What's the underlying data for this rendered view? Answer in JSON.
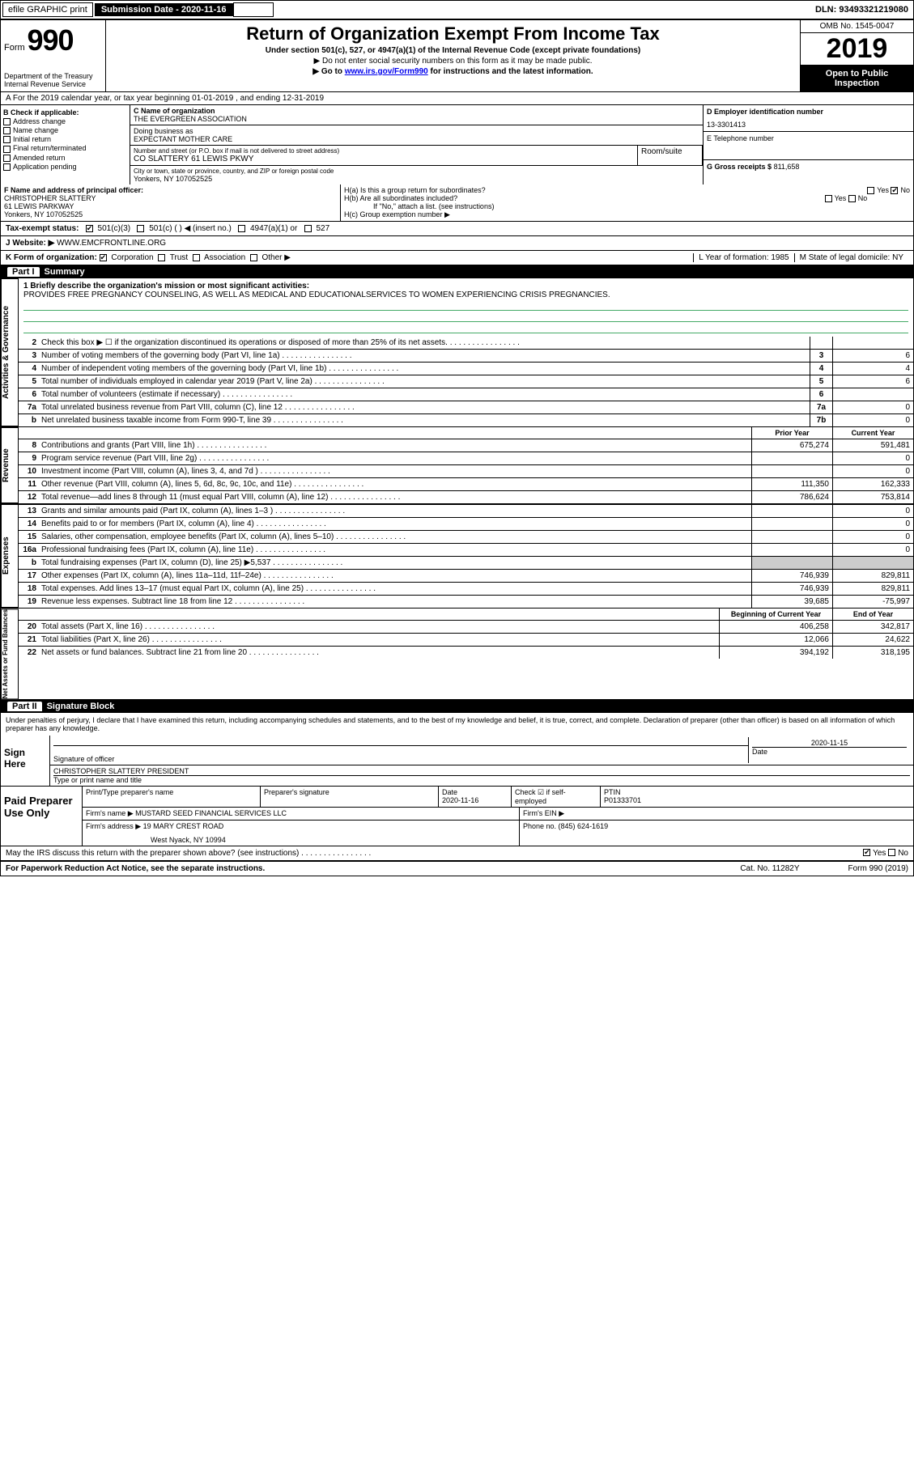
{
  "topbar": {
    "efile": "efile GRAPHIC print",
    "subdate_lbl": "Submission Date - 2020-11-16",
    "dln": "DLN: 93493321219080"
  },
  "header": {
    "form_prefix": "Form",
    "form_no": "990",
    "dept": "Department of the Treasury\nInternal Revenue Service",
    "title": "Return of Organization Exempt From Income Tax",
    "sub1": "Under section 501(c), 527, or 4947(a)(1) of the Internal Revenue Code (except private foundations)",
    "sub2": "▶ Do not enter social security numbers on this form as it may be made public.",
    "sub3_pre": "▶ Go to ",
    "sub3_link": "www.irs.gov/Form990",
    "sub3_post": " for instructions and the latest information.",
    "omb": "OMB No. 1545-0047",
    "year": "2019",
    "open": "Open to Public Inspection"
  },
  "row_a": "A For the 2019 calendar year, or tax year beginning 01-01-2019    , and ending 12-31-2019",
  "col_b": {
    "hdr": "B Check if applicable:",
    "items": [
      "Address change",
      "Name change",
      "Initial return",
      "Final return/terminated",
      "Amended return",
      "Application pending"
    ]
  },
  "col_c": {
    "name_lbl": "C Name of organization",
    "name": "THE EVERGREEN ASSOCIATION",
    "dba_lbl": "Doing business as",
    "dba": "EXPECTANT MOTHER CARE",
    "addr_lbl": "Number and street (or P.O. box if mail is not delivered to street address)",
    "addr": "CO SLATTERY 61 LEWIS PKWY",
    "room_lbl": "Room/suite",
    "city_lbl": "City or town, state or province, country, and ZIP or foreign postal code",
    "city": "Yonkers, NY  107052525"
  },
  "col_d": {
    "lbl": "D Employer identification number",
    "val": "13-3301413"
  },
  "col_e": {
    "lbl": "E Telephone number",
    "val": ""
  },
  "col_g": {
    "lbl": "G Gross receipts $",
    "val": "811,658"
  },
  "col_f": {
    "lbl": "F  Name and address of principal officer:",
    "name": "CHRISTOPHER SLATTERY",
    "addr1": "61 LEWIS PARKWAY",
    "addr2": "Yonkers, NY  107052525"
  },
  "col_h": {
    "a": "H(a)  Is this a group return for subordinates?",
    "a_yes": "Yes",
    "a_no": "No",
    "b": "H(b)  Are all subordinates included?",
    "b_sub": "If \"No,\" attach a list. (see instructions)",
    "c": "H(c)  Group exemption number ▶"
  },
  "tax_status": {
    "lbl": "Tax-exempt status:",
    "o1": "501(c)(3)",
    "o2": "501(c) (  ) ◀ (insert no.)",
    "o3": "4947(a)(1) or",
    "o4": "527"
  },
  "website": {
    "lbl": "J  Website: ▶",
    "val": "WWW.EMCFRONTLINE.ORG"
  },
  "row_k": {
    "lbl": "K Form of organization:",
    "opts": [
      "Corporation",
      "Trust",
      "Association",
      "Other ▶"
    ],
    "l": "L Year of formation: 1985",
    "m": "M State of legal domicile: NY"
  },
  "part1": {
    "lbl": "Part I",
    "title": "Summary"
  },
  "mission": {
    "q": "1  Briefly describe the organization's mission or most significant activities:",
    "a": "PROVIDES FREE PREGNANCY COUNSELING, AS WELL AS MEDICAL AND EDUCATIONALSERVICES TO WOMEN EXPERIENCING CRISIS PREGNANCIES."
  },
  "gov_rows": [
    {
      "n": "2",
      "t": "Check this box ▶ ☐  if the organization discontinued its operations or disposed of more than 25% of its net assets.",
      "box": "",
      "v": ""
    },
    {
      "n": "3",
      "t": "Number of voting members of the governing body (Part VI, line 1a)",
      "box": "3",
      "v": "6"
    },
    {
      "n": "4",
      "t": "Number of independent voting members of the governing body (Part VI, line 1b)",
      "box": "4",
      "v": "4"
    },
    {
      "n": "5",
      "t": "Total number of individuals employed in calendar year 2019 (Part V, line 2a)",
      "box": "5",
      "v": "6"
    },
    {
      "n": "6",
      "t": "Total number of volunteers (estimate if necessary)",
      "box": "6",
      "v": ""
    },
    {
      "n": "7a",
      "t": "Total unrelated business revenue from Part VIII, column (C), line 12",
      "box": "7a",
      "v": "0"
    },
    {
      "n": "b",
      "t": "Net unrelated business taxable income from Form 990-T, line 39",
      "box": "7b",
      "v": "0"
    }
  ],
  "two_col_hdr": {
    "py": "Prior Year",
    "cy": "Current Year"
  },
  "rev_rows": [
    {
      "n": "8",
      "t": "Contributions and grants (Part VIII, line 1h)",
      "py": "675,274",
      "cy": "591,481"
    },
    {
      "n": "9",
      "t": "Program service revenue (Part VIII, line 2g)",
      "py": "",
      "cy": "0"
    },
    {
      "n": "10",
      "t": "Investment income (Part VIII, column (A), lines 3, 4, and 7d )",
      "py": "",
      "cy": "0"
    },
    {
      "n": "11",
      "t": "Other revenue (Part VIII, column (A), lines 5, 6d, 8c, 9c, 10c, and 11e)",
      "py": "111,350",
      "cy": "162,333"
    },
    {
      "n": "12",
      "t": "Total revenue—add lines 8 through 11 (must equal Part VIII, column (A), line 12)",
      "py": "786,624",
      "cy": "753,814"
    }
  ],
  "exp_rows": [
    {
      "n": "13",
      "t": "Grants and similar amounts paid (Part IX, column (A), lines 1–3 )",
      "py": "",
      "cy": "0"
    },
    {
      "n": "14",
      "t": "Benefits paid to or for members (Part IX, column (A), line 4)",
      "py": "",
      "cy": "0"
    },
    {
      "n": "15",
      "t": "Salaries, other compensation, employee benefits (Part IX, column (A), lines 5–10)",
      "py": "",
      "cy": "0"
    },
    {
      "n": "16a",
      "t": "Professional fundraising fees (Part IX, column (A), line 11e)",
      "py": "",
      "cy": "0"
    },
    {
      "n": "b",
      "t": "Total fundraising expenses (Part IX, column (D), line 25) ▶5,537",
      "py": "shade",
      "cy": "shade"
    },
    {
      "n": "17",
      "t": "Other expenses (Part IX, column (A), lines 11a–11d, 11f–24e)",
      "py": "746,939",
      "cy": "829,811"
    },
    {
      "n": "18",
      "t": "Total expenses. Add lines 13–17 (must equal Part IX, column (A), line 25)",
      "py": "746,939",
      "cy": "829,811"
    },
    {
      "n": "19",
      "t": "Revenue less expenses. Subtract line 18 from line 12",
      "py": "39,685",
      "cy": "-75,997"
    }
  ],
  "na_hdr": {
    "py": "Beginning of Current Year",
    "cy": "End of Year"
  },
  "na_rows": [
    {
      "n": "20",
      "t": "Total assets (Part X, line 16)",
      "py": "406,258",
      "cy": "342,817"
    },
    {
      "n": "21",
      "t": "Total liabilities (Part X, line 26)",
      "py": "12,066",
      "cy": "24,622"
    },
    {
      "n": "22",
      "t": "Net assets or fund balances. Subtract line 21 from line 20",
      "py": "394,192",
      "cy": "318,195"
    }
  ],
  "sections": {
    "gov": "Activities & Governance",
    "rev": "Revenue",
    "exp": "Expenses",
    "na": "Net Assets or Fund Balances"
  },
  "part2": {
    "lbl": "Part II",
    "title": "Signature Block"
  },
  "penalty": "Under penalties of perjury, I declare that I have examined this return, including accompanying schedules and statements, and to the best of my knowledge and belief, it is true, correct, and complete. Declaration of preparer (other than officer) is based on all information of which preparer has any knowledge.",
  "sign": {
    "here": "Sign Here",
    "sig_lbl": "Signature of officer",
    "date_lbl": "Date",
    "date": "2020-11-15",
    "name": "CHRISTOPHER SLATTERY PRESIDENT",
    "name_lbl": "Type or print name and title"
  },
  "prep": {
    "here": "Paid Preparer Use Only",
    "h1": "Print/Type preparer's name",
    "h2": "Preparer's signature",
    "h3": "Date",
    "h3v": "2020-11-16",
    "h4": "Check ☑ if self-employed",
    "h5": "PTIN",
    "h5v": "P01333701",
    "fn_lbl": "Firm's name   ▶",
    "fn": "MUSTARD SEED FINANCIAL SERVICES LLC",
    "fein_lbl": "Firm's EIN ▶",
    "fa_lbl": "Firm's address ▶",
    "fa": "19 MARY CREST ROAD",
    "fa2": "West Nyack, NY  10994",
    "ph_lbl": "Phone no. (845) 624-1619"
  },
  "discuss": "May the IRS discuss this return with the preparer shown above? (see instructions)",
  "discuss_yes": "Yes",
  "discuss_no": "No",
  "footer": {
    "l": "For Paperwork Reduction Act Notice, see the separate instructions.",
    "m": "Cat. No. 11282Y",
    "r": "Form 990 (2019)"
  }
}
